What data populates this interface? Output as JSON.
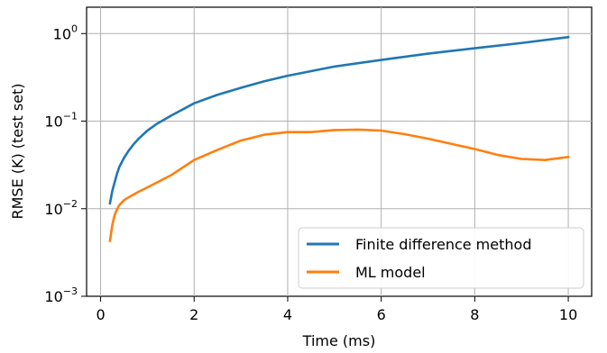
{
  "chart_data": {
    "type": "line",
    "title": "",
    "xlabel": "Time (ms)",
    "ylabel": "RMSE (K) (test set)",
    "xlim": [
      -0.3,
      10.5
    ],
    "ylim": [
      0.001,
      2.0
    ],
    "yscale": "log",
    "grid": true,
    "legend_position": "lower-right",
    "x_ticks": [
      {
        "value": 0,
        "label": "0"
      },
      {
        "value": 2,
        "label": "2"
      },
      {
        "value": 4,
        "label": "4"
      },
      {
        "value": 6,
        "label": "6"
      },
      {
        "value": 8,
        "label": "8"
      },
      {
        "value": 10,
        "label": "10"
      }
    ],
    "y_ticks": [
      {
        "value": 0.001,
        "base": "10",
        "exp": "−3"
      },
      {
        "value": 0.01,
        "base": "10",
        "exp": "−2"
      },
      {
        "value": 0.1,
        "base": "10",
        "exp": "−1"
      },
      {
        "value": 1,
        "base": "10",
        "exp": "0"
      }
    ],
    "series": [
      {
        "name": "Finite difference method",
        "color": "#1f77b4",
        "x": [
          0.2,
          0.25,
          0.3,
          0.35,
          0.4,
          0.5,
          0.6,
          0.7,
          0.8,
          1.0,
          1.2,
          1.5,
          2.0,
          2.5,
          3.0,
          3.5,
          4.0,
          5.0,
          6.0,
          7.0,
          8.0,
          9.0,
          10.0
        ],
        "y": [
          0.0115,
          0.016,
          0.02,
          0.025,
          0.03,
          0.038,
          0.046,
          0.054,
          0.062,
          0.078,
          0.093,
          0.115,
          0.16,
          0.2,
          0.24,
          0.285,
          0.33,
          0.42,
          0.5,
          0.59,
          0.68,
          0.78,
          0.91
        ]
      },
      {
        "name": "ML model",
        "color": "#ff7f0e",
        "x": [
          0.2,
          0.25,
          0.3,
          0.35,
          0.4,
          0.5,
          0.6,
          0.8,
          1.0,
          1.5,
          2.0,
          2.5,
          3.0,
          3.5,
          4.0,
          4.5,
          5.0,
          5.5,
          6.0,
          6.5,
          7.0,
          7.5,
          8.0,
          8.5,
          9.0,
          9.5,
          10.0
        ],
        "y": [
          0.0043,
          0.0065,
          0.0085,
          0.0098,
          0.011,
          0.0125,
          0.0135,
          0.0155,
          0.0175,
          0.024,
          0.036,
          0.047,
          0.06,
          0.07,
          0.075,
          0.075,
          0.079,
          0.08,
          0.078,
          0.071,
          0.063,
          0.055,
          0.048,
          0.041,
          0.037,
          0.036,
          0.039
        ]
      }
    ]
  }
}
